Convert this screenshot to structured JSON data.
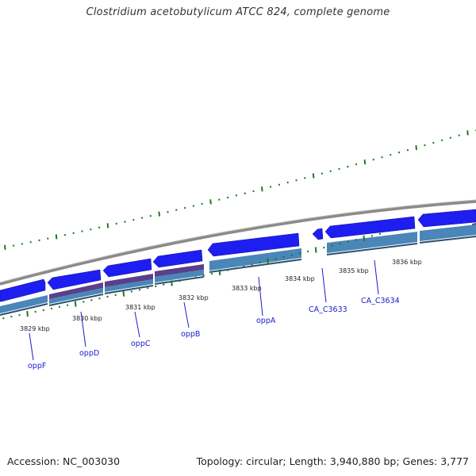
{
  "title": "Clostridium acetobutylicum ATCC 824, complete genome",
  "footer": {
    "accession": "Accession: NC_003030",
    "summary": "Topology: circular; Length: 3,940,880 bp; Genes: 3,777"
  },
  "colors": {
    "gene_forward": "#1e1ef0",
    "gene_reverse": "#1e1ef0",
    "cds": "#4a86b8",
    "cds_alt": "#5a3f8c",
    "backbone": "#8a8a8a",
    "tick": "#1f7a1f",
    "label": "#1a1acc"
  },
  "kbp_labels": [
    "3829 kbp",
    "3830 kbp",
    "3831 kbp",
    "3832 kbp",
    "3833 kbp",
    "3834 kbp",
    "3835 kbp",
    "3836 kbp"
  ],
  "gene_labels": [
    "oppF",
    "oppD",
    "oppC",
    "oppB",
    "oppA",
    "CA_C3633",
    "CA_C3634"
  ]
}
